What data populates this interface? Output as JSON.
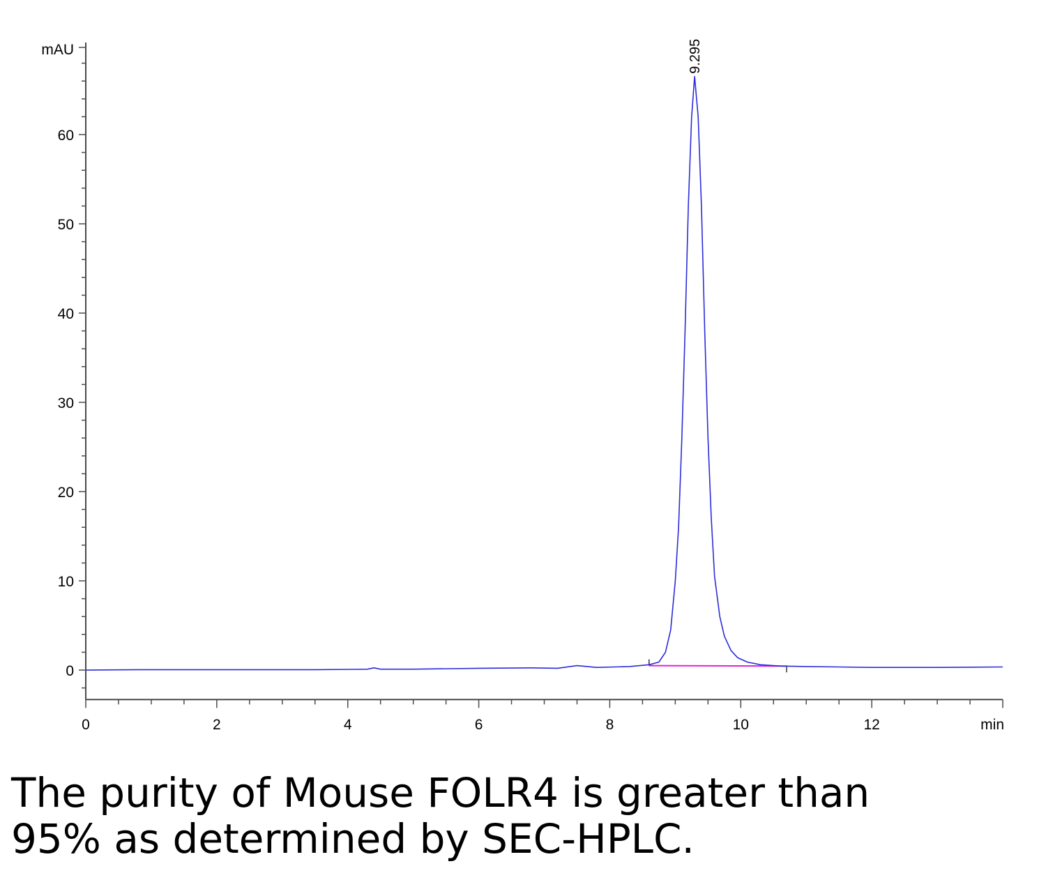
{
  "chart_data": {
    "type": "line",
    "xlabel": "min",
    "ylabel": "mAU",
    "xlim": [
      0,
      14
    ],
    "ylim": [
      -3.3,
      70
    ],
    "x_ticks": [
      0,
      2,
      4,
      6,
      8,
      10,
      12
    ],
    "y_ticks": [
      0,
      10,
      20,
      30,
      40,
      50,
      60
    ],
    "grid": false,
    "series": [
      {
        "color": "#2b2bd9",
        "x": [
          0,
          0.8,
          2,
          3.5,
          4.3,
          4.4,
          4.5,
          5,
          6,
          6.8,
          7.2,
          7.5,
          7.8,
          8.3,
          8.6,
          8.75,
          8.85,
          8.93,
          9.0,
          9.05,
          9.1,
          9.15,
          9.2,
          9.25,
          9.295,
          9.35,
          9.4,
          9.45,
          9.5,
          9.55,
          9.6,
          9.68,
          9.75,
          9.85,
          9.95,
          10.1,
          10.3,
          10.6,
          11,
          11.5,
          12,
          13,
          14
        ],
        "y": [
          0.0,
          0.05,
          0.05,
          0.05,
          0.1,
          0.25,
          0.1,
          0.1,
          0.2,
          0.25,
          0.2,
          0.5,
          0.3,
          0.4,
          0.6,
          0.9,
          2.0,
          4.5,
          10.0,
          16.0,
          26.0,
          38.0,
          52.0,
          62.0,
          66.5,
          62.0,
          52.0,
          38.0,
          26.0,
          17.0,
          10.5,
          6.0,
          3.8,
          2.2,
          1.4,
          0.9,
          0.6,
          0.45,
          0.4,
          0.35,
          0.3,
          0.3,
          0.35
        ]
      }
    ],
    "baseline": {
      "color": "#e020d8",
      "x": [
        8.6,
        10.7
      ],
      "y": [
        0.5,
        0.45
      ]
    },
    "peak_annotation": {
      "label": "9.295",
      "x": 9.295,
      "y": 66.5
    }
  },
  "caption": {
    "line1": "The purity of Mouse FOLR4 is greater than",
    "line2": "95% as determined by SEC-HPLC."
  }
}
